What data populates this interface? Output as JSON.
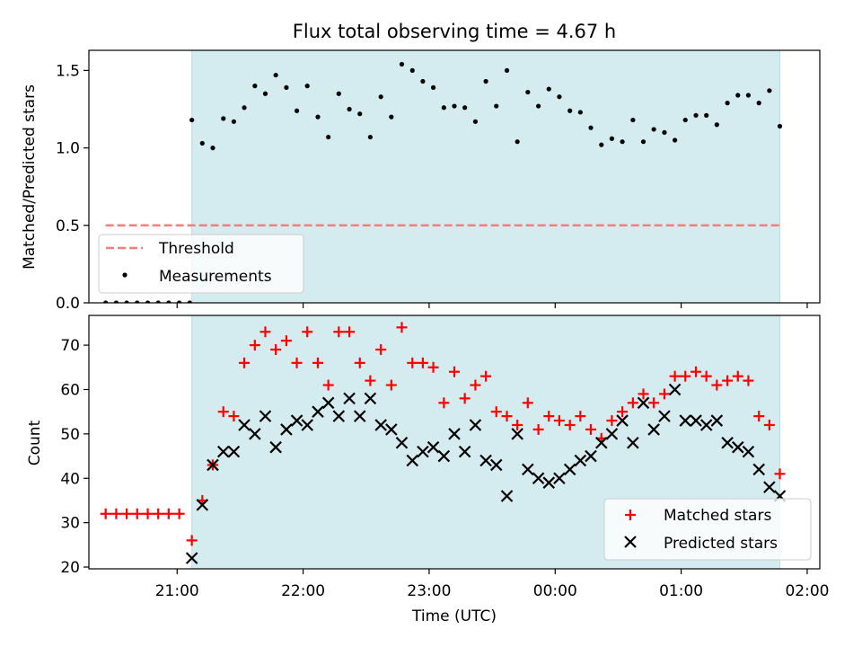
{
  "colors": {
    "shade": "#d4ebf0",
    "shade_edge": "#b9dde6",
    "threshold": "#f08080",
    "matched": "#ff0000",
    "predicted": "#000000",
    "measurement": "#000000"
  },
  "chart_data": [
    {
      "type": "scatter",
      "title": "Flux total observing time = 4.67 h",
      "ylabel": "Matched/Predicted stars",
      "xlabel": "",
      "x_range_hours": [
        20.3,
        26.1
      ],
      "ylim": [
        0,
        1.63
      ],
      "y_ticks": [
        0,
        0.5,
        1.0,
        1.5
      ],
      "y_tick_labels": [
        "0.0",
        "0.5",
        "1.0",
        "1.5"
      ],
      "x_tick_values": [
        21,
        22,
        23,
        24,
        25,
        26
      ],
      "x_tick_labels": [
        "",
        "",
        "",
        "",
        "",
        ""
      ],
      "grid": false,
      "legend": "lower-left",
      "shaded_span_hours": [
        21.117,
        25.783
      ],
      "threshold": {
        "name": "Threshold",
        "y": 0.5,
        "x_range_hours": [
          20.433,
          25.783
        ]
      },
      "measurements": {
        "name": "Measurements",
        "x": [
          20.433,
          20.517,
          20.6,
          20.683,
          20.767,
          20.85,
          20.933,
          21.017,
          21.1,
          21.117,
          21.2,
          21.283,
          21.367,
          21.45,
          21.533,
          21.617,
          21.7,
          21.783,
          21.867,
          21.95,
          22.033,
          22.117,
          22.2,
          22.283,
          22.367,
          22.45,
          22.533,
          22.617,
          22.7,
          22.783,
          22.867,
          22.95,
          23.033,
          23.117,
          23.2,
          23.283,
          23.367,
          23.45,
          23.533,
          23.617,
          23.7,
          23.783,
          23.867,
          23.95,
          24.033,
          24.117,
          24.2,
          24.283,
          24.367,
          24.45,
          24.533,
          24.617,
          24.7,
          24.783,
          24.867,
          24.95,
          25.033,
          25.117,
          25.2,
          25.283,
          25.367,
          25.45,
          25.533,
          25.617,
          25.7,
          25.783
        ],
        "y": [
          0,
          0,
          0,
          0,
          0,
          0,
          0,
          0,
          0,
          1.18,
          1.03,
          1.0,
          1.19,
          1.17,
          1.26,
          1.4,
          1.35,
          1.47,
          1.39,
          1.24,
          1.4,
          1.2,
          1.07,
          1.35,
          1.25,
          1.22,
          1.07,
          1.33,
          1.2,
          1.54,
          1.5,
          1.43,
          1.39,
          1.26,
          1.27,
          1.26,
          1.17,
          1.43,
          1.27,
          1.5,
          1.04,
          1.36,
          1.27,
          1.38,
          1.33,
          1.24,
          1.23,
          1.13,
          1.02,
          1.06,
          1.04,
          1.18,
          1.04,
          1.12,
          1.1,
          1.05,
          1.18,
          1.21,
          1.21,
          1.15,
          1.29,
          1.34,
          1.34,
          1.29,
          1.37,
          1.14
        ]
      }
    },
    {
      "type": "scatter",
      "title": "",
      "xlabel": "Time (UTC)",
      "ylabel": "Count",
      "x_range_hours": [
        20.3,
        26.1
      ],
      "ylim": [
        19.6,
        76.7
      ],
      "y_ticks": [
        20,
        30,
        40,
        50,
        60,
        70
      ],
      "y_tick_labels": [
        "20",
        "30",
        "40",
        "50",
        "60",
        "70"
      ],
      "x_tick_values": [
        21,
        22,
        23,
        24,
        25,
        26
      ],
      "x_tick_labels": [
        "21:00",
        "22:00",
        "23:00",
        "00:00",
        "01:00",
        "02:00"
      ],
      "grid": false,
      "legend": "lower-right",
      "shaded_span_hours": [
        21.117,
        25.783
      ],
      "series": [
        {
          "name": "Matched stars",
          "marker": "plus",
          "x": [
            20.433,
            20.517,
            20.6,
            20.683,
            20.767,
            20.85,
            20.933,
            21.017,
            21.117,
            21.2,
            21.283,
            21.367,
            21.45,
            21.533,
            21.617,
            21.7,
            21.783,
            21.867,
            21.95,
            22.033,
            22.117,
            22.2,
            22.283,
            22.367,
            22.45,
            22.533,
            22.617,
            22.7,
            22.783,
            22.867,
            22.95,
            23.033,
            23.117,
            23.2,
            23.283,
            23.367,
            23.45,
            23.533,
            23.617,
            23.7,
            23.783,
            23.867,
            23.95,
            24.033,
            24.117,
            24.2,
            24.283,
            24.367,
            24.45,
            24.533,
            24.617,
            24.7,
            24.783,
            24.867,
            24.95,
            25.033,
            25.117,
            25.2,
            25.283,
            25.367,
            25.45,
            25.533,
            25.617,
            25.7,
            25.783
          ],
          "values": [
            32,
            32,
            32,
            32,
            32,
            32,
            32,
            32,
            26,
            35,
            43,
            55,
            54,
            66,
            70,
            73,
            69,
            71,
            66,
            73,
            66,
            61,
            73,
            73,
            66,
            62,
            69,
            61,
            74,
            66,
            66,
            65,
            57,
            64,
            58,
            61,
            63,
            55,
            54,
            52,
            57,
            51,
            54,
            53,
            52,
            54,
            51,
            49,
            53,
            55,
            57,
            59,
            57,
            59,
            63,
            63,
            64,
            63,
            61,
            62,
            63,
            62,
            54,
            52,
            41
          ]
        },
        {
          "name": "Predicted stars",
          "marker": "x",
          "x": [
            21.117,
            21.2,
            21.283,
            21.367,
            21.45,
            21.533,
            21.617,
            21.7,
            21.783,
            21.867,
            21.95,
            22.033,
            22.117,
            22.2,
            22.283,
            22.367,
            22.45,
            22.533,
            22.617,
            22.7,
            22.783,
            22.867,
            22.95,
            23.033,
            23.117,
            23.2,
            23.283,
            23.367,
            23.45,
            23.533,
            23.617,
            23.7,
            23.783,
            23.867,
            23.95,
            24.033,
            24.117,
            24.2,
            24.283,
            24.367,
            24.45,
            24.533,
            24.617,
            24.7,
            24.783,
            24.867,
            24.95,
            25.033,
            25.117,
            25.2,
            25.283,
            25.367,
            25.45,
            25.533,
            25.617,
            25.7,
            25.783
          ],
          "values": [
            22,
            34,
            43,
            46,
            46,
            52,
            50,
            54,
            47,
            51,
            53,
            52,
            55,
            57,
            54,
            58,
            54,
            58,
            52,
            51,
            48,
            44,
            46,
            47,
            45,
            50,
            46,
            52,
            44,
            43,
            36,
            50,
            42,
            40,
            39,
            40,
            42,
            44,
            45,
            48,
            50,
            53,
            48,
            57,
            51,
            54,
            60,
            53,
            53,
            52,
            53,
            48,
            47,
            46,
            42,
            38,
            36
          ]
        }
      ]
    }
  ]
}
